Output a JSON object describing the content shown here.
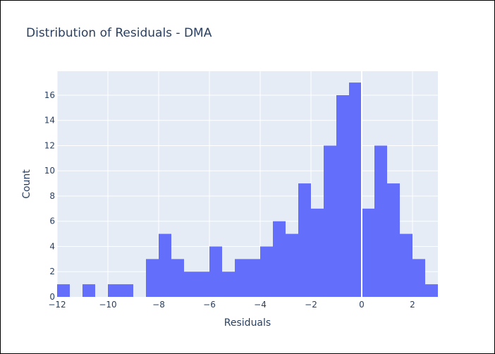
{
  "chart_data": {
    "type": "histogram",
    "title": "Distribution of Residuals - DMA",
    "xlabel": "Residuals",
    "ylabel": "Count",
    "xlim": [
      -12,
      3
    ],
    "ylim": [
      0,
      17.9
    ],
    "bin_width": 0.5,
    "x_ticks": [
      -12,
      -10,
      -8,
      -6,
      -4,
      -2,
      0,
      2
    ],
    "x_tick_labels": [
      "−12",
      "−10",
      "−8",
      "−6",
      "−4",
      "−2",
      "0",
      "2"
    ],
    "y_ticks": [
      0,
      2,
      4,
      6,
      8,
      10,
      12,
      14,
      16
    ],
    "y_tick_labels": [
      "0",
      "2",
      "4",
      "6",
      "8",
      "10",
      "12",
      "14",
      "16"
    ],
    "grid": true,
    "bar_color": "#636efa",
    "plot_bg": "#e5ecf6",
    "bins": [
      {
        "x0": -12.0,
        "count": 1
      },
      {
        "x0": -11.0,
        "count": 1
      },
      {
        "x0": -10.0,
        "count": 1
      },
      {
        "x0": -9.5,
        "count": 1
      },
      {
        "x0": -8.5,
        "count": 3
      },
      {
        "x0": -8.0,
        "count": 5
      },
      {
        "x0": -7.5,
        "count": 3
      },
      {
        "x0": -7.0,
        "count": 2
      },
      {
        "x0": -6.5,
        "count": 2
      },
      {
        "x0": -6.0,
        "count": 4
      },
      {
        "x0": -5.5,
        "count": 2
      },
      {
        "x0": -5.0,
        "count": 3
      },
      {
        "x0": -4.5,
        "count": 3
      },
      {
        "x0": -4.0,
        "count": 4
      },
      {
        "x0": -3.5,
        "count": 6
      },
      {
        "x0": -3.0,
        "count": 5
      },
      {
        "x0": -2.5,
        "count": 9
      },
      {
        "x0": -2.0,
        "count": 7
      },
      {
        "x0": -1.5,
        "count": 12
      },
      {
        "x0": -1.0,
        "count": 16
      },
      {
        "x0": -0.5,
        "count": 17
      },
      {
        "x0": 0.0,
        "count": 7
      },
      {
        "x0": 0.5,
        "count": 12
      },
      {
        "x0": 1.0,
        "count": 9
      },
      {
        "x0": 1.5,
        "count": 5
      },
      {
        "x0": 2.0,
        "count": 3
      },
      {
        "x0": 2.5,
        "count": 1
      }
    ]
  }
}
